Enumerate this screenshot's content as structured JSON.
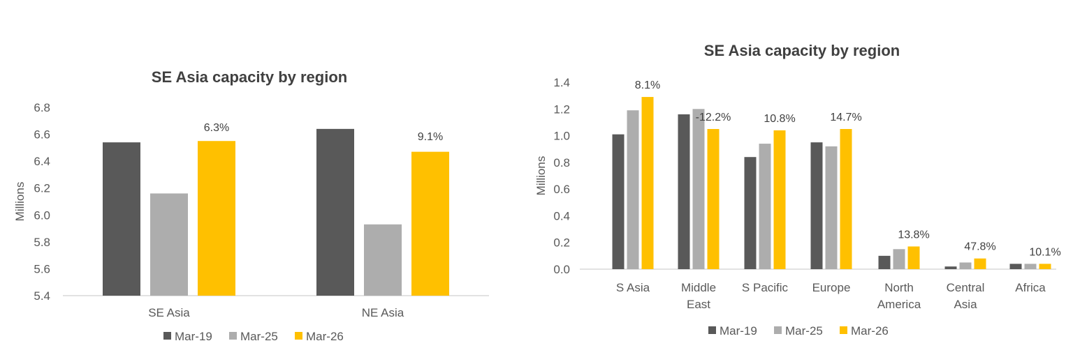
{
  "colors": {
    "Mar-19": "#595959",
    "Mar-25": "#ADADAD",
    "Mar-26": "#FFC000",
    "axis": "#D9D9D9"
  },
  "chart_data": [
    {
      "type": "bar",
      "title": "SE Asia capacity by region",
      "xlabel": "",
      "ylabel": "Millions",
      "ylim": [
        5.4,
        6.8
      ],
      "yticks": [
        "5.4",
        "5.6",
        "5.8",
        "6.0",
        "6.2",
        "6.4",
        "6.6",
        "6.8"
      ],
      "categories": [
        "SE Asia",
        "NE Asia"
      ],
      "series": [
        {
          "name": "Mar-19",
          "values": [
            6.54,
            6.64
          ]
        },
        {
          "name": "Mar-25",
          "values": [
            6.16,
            5.93
          ]
        },
        {
          "name": "Mar-26",
          "values": [
            6.55,
            6.47
          ]
        }
      ],
      "data_labels": [
        "6.3%",
        "9.1%"
      ],
      "legend": "bottom",
      "grid": false
    },
    {
      "type": "bar",
      "title": "SE Asia capacity by region",
      "xlabel": "",
      "ylabel": "Millions",
      "ylim": [
        0,
        1.4
      ],
      "yticks": [
        "0.0",
        "0.2",
        "0.4",
        "0.6",
        "0.8",
        "1.0",
        "1.2",
        "1.4"
      ],
      "categories": [
        "S Asia",
        "Middle East",
        "S Pacific",
        "Europe",
        "North America",
        "Central Asia",
        "Africa"
      ],
      "category_lines": [
        [
          "S Asia"
        ],
        [
          "Middle",
          "East"
        ],
        [
          "S Pacific"
        ],
        [
          "Europe"
        ],
        [
          "North",
          "America"
        ],
        [
          "Central",
          "Asia"
        ],
        [
          "Africa"
        ]
      ],
      "series": [
        {
          "name": "Mar-19",
          "values": [
            1.01,
            1.16,
            0.84,
            0.95,
            0.1,
            0.02,
            0.04
          ]
        },
        {
          "name": "Mar-25",
          "values": [
            1.19,
            1.2,
            0.94,
            0.92,
            0.15,
            0.05,
            0.04
          ]
        },
        {
          "name": "Mar-26",
          "values": [
            1.29,
            1.05,
            1.04,
            1.05,
            0.17,
            0.08,
            0.04
          ]
        }
      ],
      "data_labels": [
        "8.1%",
        "-12.2%",
        "10.8%",
        "14.7%",
        "13.8%",
        "47.8%",
        "10.1%"
      ],
      "legend": "bottom",
      "grid": false
    }
  ]
}
